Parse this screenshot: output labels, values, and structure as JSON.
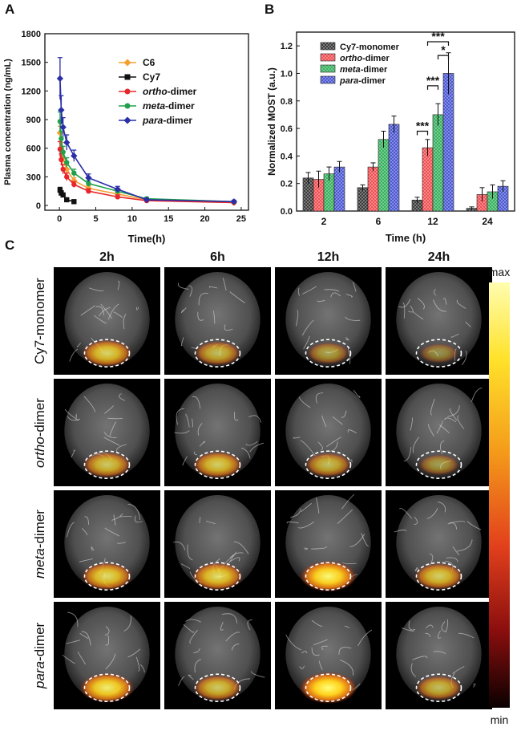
{
  "panels": {
    "a": "A",
    "b": "B",
    "c": "C"
  },
  "chart_data": [
    {
      "type": "line",
      "xlabel": "Time(h)",
      "ylabel": "Plasma concentration (ng/mL)",
      "xlim": [
        -2,
        26
      ],
      "ylim": [
        -50,
        1800
      ],
      "xticks": [
        0,
        5,
        10,
        15,
        20,
        25
      ],
      "yticks": [
        0,
        300,
        600,
        900,
        1200,
        1500,
        1800
      ],
      "legend_position": "top-right",
      "series": [
        {
          "name": "C6",
          "name_parts": [
            {
              "t": "C6",
              "i": false
            }
          ],
          "color": "#f5a033",
          "marker": "diamond",
          "x": [
            0.083,
            0.25,
            0.5,
            1,
            2,
            4,
            8,
            12,
            24
          ],
          "y": [
            760,
            600,
            500,
            380,
            260,
            180,
            120,
            60,
            30
          ],
          "err": [
            70,
            60,
            50,
            40,
            30,
            25,
            20,
            15,
            10
          ]
        },
        {
          "name": "Cy7",
          "name_parts": [
            {
              "t": "Cy7",
              "i": false
            }
          ],
          "color": "#111111",
          "marker": "square",
          "x": [
            0.083,
            0.25,
            0.5,
            1,
            2
          ],
          "y": [
            160,
            130,
            110,
            60,
            40
          ],
          "err": [
            30,
            25,
            20,
            15,
            10
          ]
        },
        {
          "name": "ortho-dimer",
          "name_parts": [
            {
              "t": "ortho",
              "i": true
            },
            {
              "t": "-dimer",
              "i": false
            }
          ],
          "color": "#e8262b",
          "marker": "circle",
          "x": [
            0.083,
            0.25,
            0.5,
            1,
            2,
            4,
            8,
            12,
            24
          ],
          "y": [
            590,
            480,
            380,
            300,
            220,
            150,
            90,
            50,
            30
          ],
          "err": [
            80,
            60,
            50,
            40,
            30,
            25,
            20,
            15,
            10
          ]
        },
        {
          "name": "meta-dimer",
          "name_parts": [
            {
              "t": "meta",
              "i": true
            },
            {
              "t": "-dimer",
              "i": false
            }
          ],
          "color": "#20a04b",
          "marker": "circle",
          "x": [
            0.083,
            0.25,
            0.5,
            1,
            2,
            4,
            8,
            12,
            24
          ],
          "y": [
            880,
            700,
            560,
            450,
            340,
            230,
            150,
            70,
            40
          ],
          "err": [
            100,
            80,
            60,
            50,
            40,
            30,
            25,
            15,
            10
          ]
        },
        {
          "name": "para-dimer",
          "name_parts": [
            {
              "t": "para",
              "i": true
            },
            {
              "t": "-dimer",
              "i": false
            }
          ],
          "color": "#2a2fa8",
          "marker": "diamond",
          "x": [
            0.083,
            0.25,
            0.5,
            1,
            2,
            4,
            8,
            12,
            24
          ],
          "y": [
            1330,
            1000,
            820,
            660,
            520,
            290,
            170,
            60,
            40
          ],
          "err": [
            220,
            150,
            100,
            80,
            60,
            40,
            30,
            15,
            15
          ]
        }
      ]
    },
    {
      "type": "bar",
      "xlabel": "Time (h)",
      "ylabel": "Normalized MOST (a.u.)",
      "categories": [
        "2",
        "6",
        "12",
        "24"
      ],
      "ylim": [
        0,
        1.3
      ],
      "yticks": [
        0.0,
        0.2,
        0.4,
        0.6,
        0.8,
        1.0,
        1.2
      ],
      "legend_position": "top-left",
      "series": [
        {
          "name": "Cy7-monomer",
          "name_parts": [
            {
              "t": "Cy7-monomer",
              "i": false
            }
          ],
          "color": "#333333",
          "values": [
            0.24,
            0.17,
            0.08,
            0.02
          ],
          "err": [
            0.04,
            0.02,
            0.02,
            0.01
          ]
        },
        {
          "name": "ortho-dimer",
          "name_parts": [
            {
              "t": "ortho",
              "i": true
            },
            {
              "t": "-dimer",
              "i": false
            }
          ],
          "color": "#f0484c",
          "values": [
            0.23,
            0.32,
            0.46,
            0.12
          ],
          "err": [
            0.06,
            0.03,
            0.06,
            0.05
          ]
        },
        {
          "name": "meta-dimer",
          "name_parts": [
            {
              "t": "meta",
              "i": true
            },
            {
              "t": "-dimer",
              "i": false
            }
          ],
          "color": "#2eae57",
          "values": [
            0.27,
            0.52,
            0.7,
            0.14
          ],
          "err": [
            0.05,
            0.06,
            0.08,
            0.05
          ]
        },
        {
          "name": "para-dimer",
          "name_parts": [
            {
              "t": "para",
              "i": true
            },
            {
              "t": "-dimer",
              "i": false
            }
          ],
          "color": "#4450d1",
          "values": [
            0.32,
            0.63,
            1.0,
            0.18
          ],
          "err": [
            0.04,
            0.06,
            0.15,
            0.04
          ]
        }
      ],
      "significance": [
        {
          "category": "12",
          "from": 1,
          "to": 3,
          "label": "***",
          "level": 1.23
        },
        {
          "category": "12",
          "from": 2,
          "to": 3,
          "label": "*",
          "level": 1.13
        },
        {
          "category": "12",
          "from": 1,
          "to": 2,
          "label": "***",
          "level": 0.91
        },
        {
          "category": "12",
          "from": 0,
          "to": 1,
          "label": "***",
          "level": 0.58
        }
      ]
    }
  ],
  "grid": {
    "columns": [
      "2h",
      "6h",
      "12h",
      "24h"
    ],
    "rows": [
      [
        {
          "t": "Cy7-monomer",
          "i": false
        }
      ],
      [
        {
          "t": "ortho",
          "i": true
        },
        {
          "t": "-dimer",
          "i": false
        }
      ],
      [
        {
          "t": "meta",
          "i": true
        },
        {
          "t": "-dimer",
          "i": false
        }
      ],
      [
        {
          "t": "para",
          "i": true
        },
        {
          "t": "-dimer",
          "i": false
        }
      ]
    ],
    "signal_level": [
      [
        0.65,
        0.45,
        0.25,
        0.08
      ],
      [
        0.55,
        0.6,
        0.45,
        0.18
      ],
      [
        0.7,
        0.7,
        0.95,
        0.6
      ],
      [
        0.85,
        0.55,
        1.0,
        0.45
      ]
    ]
  },
  "colorbar": {
    "max_label": "max",
    "min_label": "min"
  }
}
